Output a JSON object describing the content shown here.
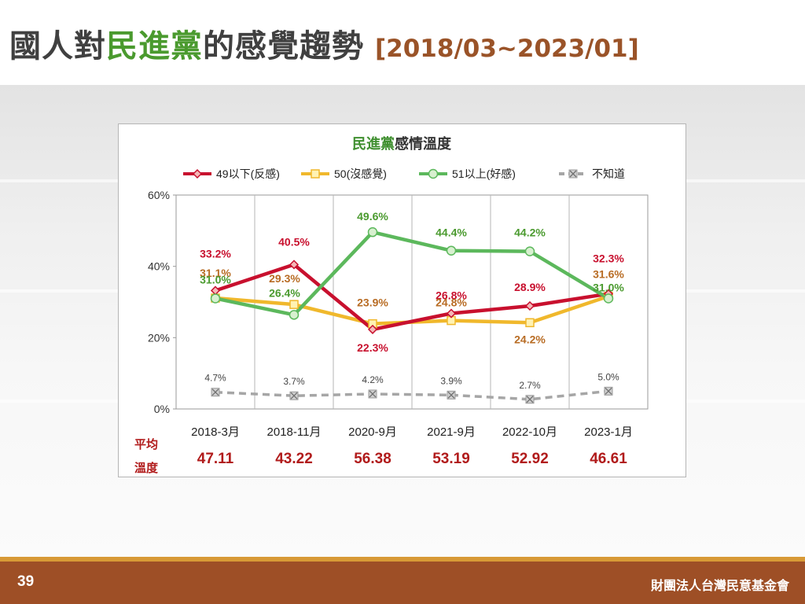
{
  "page": {
    "title_pre": "國人對",
    "title_party": "民進黨",
    "title_post": "的感覺趨勢",
    "title_range": "[2018/03~2023/01]",
    "page_number": "39",
    "organization": "財團法人台灣民意基金會"
  },
  "chart_data": {
    "type": "line",
    "title_party": "民進黨",
    "title_rest": "感情溫度",
    "categories": [
      "2018-3月",
      "2018-11月",
      "2020-9月",
      "2021-9月",
      "2022-10月",
      "2023-1月"
    ],
    "y_ticks": [
      "0%",
      "20%",
      "40%",
      "60%"
    ],
    "ylim": [
      0,
      60
    ],
    "legend_position": "top",
    "grid": false,
    "series": [
      {
        "name": "49以下(反感)",
        "values": [
          33.2,
          40.5,
          22.3,
          26.8,
          28.9,
          32.3
        ],
        "color": "#c8102e",
        "marker": "diamond",
        "dashed": false,
        "labels": [
          "33.2%",
          "40.5%",
          "22.3%",
          "26.8%",
          "28.9%",
          "32.3%"
        ]
      },
      {
        "name": "50(沒感覺)",
        "values": [
          31.1,
          29.3,
          23.9,
          24.8,
          24.2,
          31.6
        ],
        "color": "#f0b82c",
        "marker": "square",
        "dashed": false,
        "labels": [
          "31.1%",
          "29.3%",
          "23.9%",
          "24.8%",
          "24.2%",
          "31.6%"
        ]
      },
      {
        "name": "51以上(好感)",
        "values": [
          31.0,
          26.4,
          49.6,
          44.4,
          44.2,
          31.0
        ],
        "color": "#5cb85c",
        "marker": "circle",
        "dashed": false,
        "labels": [
          "31.0%",
          "26.4%",
          "49.6%",
          "44.4%",
          "44.2%",
          "31.0%"
        ]
      },
      {
        "name": "不知道",
        "values": [
          4.7,
          3.7,
          4.2,
          3.9,
          2.7,
          5.0
        ],
        "color": "#a6a6a6",
        "marker": "x",
        "dashed": true,
        "labels": [
          "4.7%",
          "3.7%",
          "4.2%",
          "3.9%",
          "2.7%",
          "5.0%"
        ]
      }
    ],
    "average_label_1": "平均",
    "average_label_2": "溫度",
    "averages": [
      "47.11",
      "43.22",
      "56.38",
      "53.19",
      "52.92",
      "46.61"
    ]
  }
}
